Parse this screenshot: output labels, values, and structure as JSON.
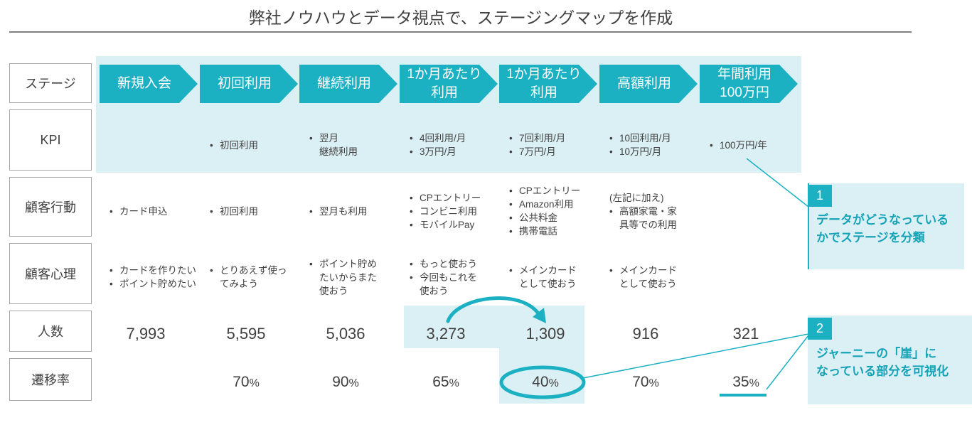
{
  "title": "弊社ノウハウとデータ視点で、ステージングマップを作成",
  "row_labels": {
    "stage": "ステージ",
    "kpi": "KPI",
    "action": "顧客行動",
    "psychology": "顧客心理",
    "count": "人数",
    "rate": "遷移率"
  },
  "stages": [
    {
      "name": "新規入会",
      "actions": [
        "カード申込"
      ],
      "psychology": [
        "カードを作りたい",
        "ポイント貯めたい"
      ],
      "count": "7,993"
    },
    {
      "name": "初回利用",
      "kpi": [
        "初回利用"
      ],
      "actions": [
        "初回利用"
      ],
      "psychology": [
        "とりあえず使っ\nてみよう"
      ],
      "count": "5,595",
      "rate": "70"
    },
    {
      "name": "継続利用",
      "kpi": [
        "翌月\n継続利用"
      ],
      "actions": [
        "翌月も利用"
      ],
      "psychology": [
        "ポイント貯め\nたいからまた\n使おう"
      ],
      "count": "5,036",
      "rate": "90"
    },
    {
      "name": "1か月あたり\n利用",
      "kpi": [
        "4回利用/月",
        "3万円/月"
      ],
      "actions": [
        "CPエントリー",
        "コンビニ利用",
        "モバイルPay"
      ],
      "psychology": [
        "もっと使おう",
        "今回もこれを\n使おう"
      ],
      "count": "3,273",
      "rate": "65"
    },
    {
      "name": "1か月あたり\n利用",
      "kpi": [
        "7回利用/月",
        "7万円/月"
      ],
      "actions": [
        "CPエントリー",
        "Amazon利用",
        "公共料金",
        "携帯電話"
      ],
      "psychology": [
        "メインカード\nとして使おう"
      ],
      "count": "1,309",
      "rate": "40"
    },
    {
      "name": "高額利用",
      "kpi": [
        "10回利用/月",
        "10万円/月"
      ],
      "action_note": "(左記に加え)",
      "actions": [
        "高額家電・家\n具等での利用"
      ],
      "psychology": [
        "メインカード\nとして使おう"
      ],
      "count": "916",
      "rate": "70"
    },
    {
      "name": "年間利用\n100万円",
      "kpi": [
        "100万円/年"
      ],
      "count": "321",
      "rate": "35"
    }
  ],
  "rate_unit": "%",
  "callouts": [
    {
      "number": "1",
      "text": "データがどうなっている\nかでステージを分類"
    },
    {
      "number": "2",
      "text": "ジャーニーの「崖」に\nなっている部分を可視化"
    }
  ],
  "colors": {
    "accent": "#1cb0c3",
    "accent_light": "#dbf0f4",
    "callout_text": "#17a3b7",
    "text": "#404040",
    "border": "#a6a6a6"
  }
}
